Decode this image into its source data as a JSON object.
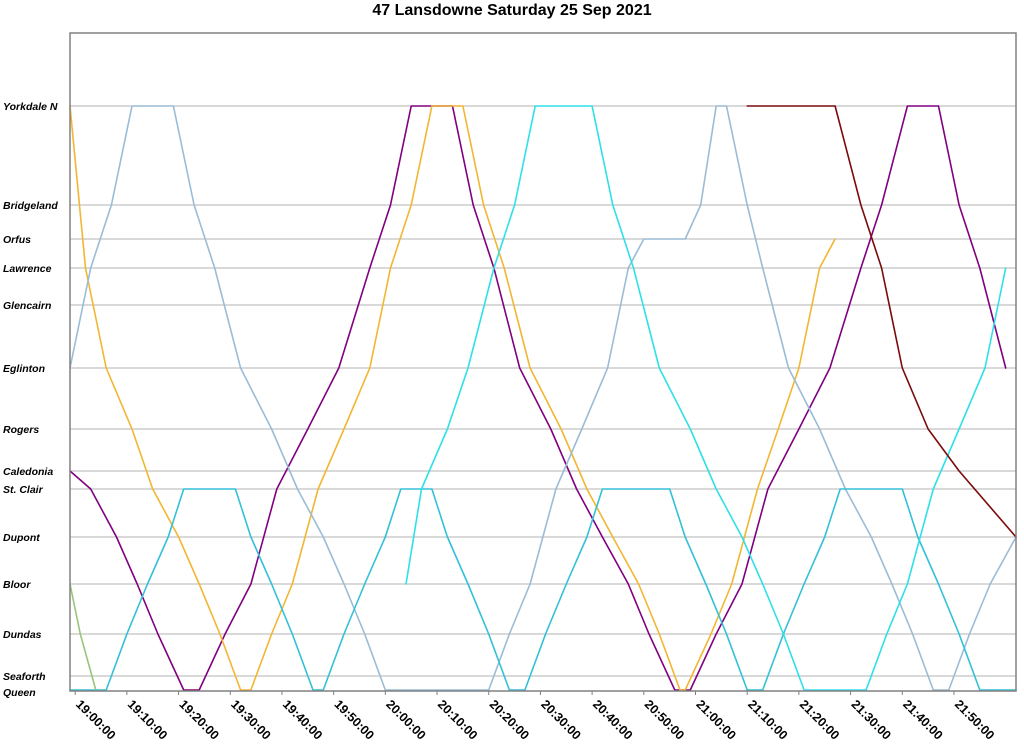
{
  "chart_data": {
    "type": "line",
    "title": "47 Lansdowne Saturday 25 Sep 2021",
    "xlabel": "",
    "ylabel": "",
    "xlim": [
      "18:59:00",
      "22:02:00"
    ],
    "x_ticks": [
      "19:00:00",
      "19:10:00",
      "19:20:00",
      "19:30:00",
      "19:40:00",
      "19:50:00",
      "20:00:00",
      "20:10:00",
      "20:20:00",
      "20:30:00",
      "20:40:00",
      "20:50:00",
      "21:00:00",
      "21:10:00",
      "21:20:00",
      "21:30:00",
      "21:40:00",
      "21:50:00"
    ],
    "stops": [
      "Yorkdale N",
      "Bridgeland",
      "Orfus",
      "Lawrence",
      "Glencairn",
      "Eglinton",
      "Rogers",
      "Caledonia",
      "St. Clair",
      "Dupont",
      "Bloor",
      "Dundas",
      "Seaforth",
      "Queen"
    ],
    "grid": true,
    "legend": "none",
    "series": [
      {
        "color": "#800080",
        "points": [
          [
            "18:59",
            "Caledonia"
          ],
          [
            "19:03",
            "St. Clair"
          ],
          [
            "19:08",
            "Dupont"
          ],
          [
            "19:12",
            "Bloor"
          ],
          [
            "19:16",
            "Dundas"
          ],
          [
            "19:21",
            "Queen"
          ],
          [
            "19:24",
            "Queen"
          ],
          [
            "19:29",
            "Dundas"
          ],
          [
            "19:34",
            "Bloor"
          ],
          [
            "19:39",
            "St. Clair"
          ],
          [
            "19:45",
            "Rogers"
          ],
          [
            "19:51",
            "Eglinton"
          ],
          [
            "19:57",
            "Lawrence"
          ],
          [
            "20:01",
            "Bridgeland"
          ],
          [
            "20:05",
            "Yorkdale N"
          ],
          [
            "20:13",
            "Yorkdale N"
          ],
          [
            "20:17",
            "Bridgeland"
          ],
          [
            "20:21",
            "Lawrence"
          ],
          [
            "20:26",
            "Eglinton"
          ],
          [
            "20:32",
            "Rogers"
          ],
          [
            "20:37",
            "St. Clair"
          ],
          [
            "20:42",
            "Dupont"
          ],
          [
            "20:47",
            "Bloor"
          ],
          [
            "20:51",
            "Dundas"
          ],
          [
            "20:56",
            "Queen"
          ],
          [
            "20:59",
            "Queen"
          ],
          [
            "21:04",
            "Dundas"
          ],
          [
            "21:09",
            "Bloor"
          ],
          [
            "21:14",
            "St. Clair"
          ],
          [
            "21:20",
            "Rogers"
          ],
          [
            "21:26",
            "Eglinton"
          ],
          [
            "21:32",
            "Lawrence"
          ],
          [
            "21:36",
            "Bridgeland"
          ],
          [
            "21:41",
            "Yorkdale N"
          ],
          [
            "21:47",
            "Yorkdale N"
          ],
          [
            "21:51",
            "Bridgeland"
          ],
          [
            "21:55",
            "Lawrence"
          ],
          [
            "22:00",
            "Eglinton"
          ]
        ]
      },
      {
        "color": "#F2B632",
        "points": [
          [
            "18:59",
            "Yorkdale N"
          ],
          [
            "19:02",
            "Lawrence"
          ],
          [
            "19:06",
            "Eglinton"
          ],
          [
            "19:11",
            "Rogers"
          ],
          [
            "19:15",
            "St. Clair"
          ],
          [
            "19:20",
            "Dupont"
          ],
          [
            "19:24",
            "Bloor"
          ],
          [
            "19:28",
            "Dundas"
          ],
          [
            "19:32",
            "Queen"
          ],
          [
            "19:34",
            "Queen"
          ],
          [
            "19:38",
            "Dundas"
          ],
          [
            "19:42",
            "Bloor"
          ],
          [
            "19:47",
            "St. Clair"
          ],
          [
            "19:52",
            "Rogers"
          ],
          [
            "19:57",
            "Eglinton"
          ],
          [
            "20:01",
            "Lawrence"
          ],
          [
            "20:05",
            "Bridgeland"
          ],
          [
            "20:09",
            "Yorkdale N"
          ],
          [
            "20:15",
            "Yorkdale N"
          ],
          [
            "20:19",
            "Bridgeland"
          ],
          [
            "20:23",
            "Lawrence"
          ],
          [
            "20:28",
            "Eglinton"
          ],
          [
            "20:34",
            "Rogers"
          ],
          [
            "20:39",
            "St. Clair"
          ],
          [
            "20:44",
            "Dupont"
          ],
          [
            "20:49",
            "Bloor"
          ],
          [
            "20:53",
            "Dundas"
          ],
          [
            "20:57",
            "Queen"
          ],
          [
            "20:58",
            "Queen"
          ],
          [
            "21:03",
            "Dundas"
          ],
          [
            "21:07",
            "Bloor"
          ],
          [
            "21:12",
            "St. Clair"
          ],
          [
            "21:16",
            "Rogers"
          ],
          [
            "21:20",
            "Eglinton"
          ],
          [
            "21:24",
            "Lawrence"
          ],
          [
            "21:27",
            "Orfus"
          ]
        ]
      },
      {
        "color": "#9BBCD6",
        "points": [
          [
            "18:59",
            "Eglinton"
          ],
          [
            "19:03",
            "Lawrence"
          ],
          [
            "19:07",
            "Bridgeland"
          ],
          [
            "19:11",
            "Yorkdale N"
          ],
          [
            "19:19",
            "Yorkdale N"
          ],
          [
            "19:23",
            "Bridgeland"
          ],
          [
            "19:27",
            "Lawrence"
          ],
          [
            "19:32",
            "Eglinton"
          ],
          [
            "19:38",
            "Rogers"
          ],
          [
            "19:43",
            "St. Clair"
          ],
          [
            "19:48",
            "Dupont"
          ],
          [
            "19:52",
            "Bloor"
          ],
          [
            "19:56",
            "Dundas"
          ],
          [
            "20:00",
            "Queen"
          ],
          [
            "20:20",
            "Queen"
          ],
          [
            "20:24",
            "Dundas"
          ],
          [
            "20:28",
            "Bloor"
          ],
          [
            "20:33",
            "St. Clair"
          ],
          [
            "20:38",
            "Rogers"
          ],
          [
            "20:43",
            "Eglinton"
          ],
          [
            "20:47",
            "Lawrence"
          ],
          [
            "20:50",
            "Orfus"
          ],
          [
            "20:58",
            "Orfus"
          ],
          [
            "21:01",
            "Bridgeland"
          ],
          [
            "21:04",
            "Yorkdale N"
          ],
          [
            "21:06",
            "Yorkdale N"
          ],
          [
            "21:10",
            "Bridgeland"
          ],
          [
            "21:13",
            "Lawrence"
          ],
          [
            "21:18",
            "Eglinton"
          ],
          [
            "21:24",
            "Rogers"
          ],
          [
            "21:29",
            "St. Clair"
          ],
          [
            "21:34",
            "Dupont"
          ],
          [
            "21:38",
            "Bloor"
          ],
          [
            "21:42",
            "Dundas"
          ],
          [
            "21:46",
            "Queen"
          ],
          [
            "21:49",
            "Queen"
          ],
          [
            "21:53",
            "Dundas"
          ],
          [
            "21:57",
            "Bloor"
          ],
          [
            "22:02",
            "Dupont"
          ]
        ]
      },
      {
        "color": "#33C0D8",
        "points": [
          [
            "18:59",
            "Queen"
          ],
          [
            "19:06",
            "Queen"
          ],
          [
            "19:10",
            "Dundas"
          ],
          [
            "19:14",
            "Bloor"
          ],
          [
            "19:18",
            "Dupont"
          ],
          [
            "19:21",
            "St. Clair"
          ],
          [
            "19:31",
            "St. Clair"
          ],
          [
            "19:34",
            "Dupont"
          ],
          [
            "19:38",
            "Bloor"
          ],
          [
            "19:42",
            "Dundas"
          ],
          [
            "19:46",
            "Queen"
          ],
          [
            "19:48",
            "Queen"
          ],
          [
            "19:52",
            "Dundas"
          ],
          [
            "19:56",
            "Bloor"
          ],
          [
            "20:00",
            "Dupont"
          ],
          [
            "20:03",
            "St. Clair"
          ],
          [
            "20:09",
            "St. Clair"
          ],
          [
            "20:12",
            "Dupont"
          ],
          [
            "20:16",
            "Bloor"
          ],
          [
            "20:20",
            "Dundas"
          ],
          [
            "20:24",
            "Queen"
          ],
          [
            "20:27",
            "Queen"
          ],
          [
            "20:31",
            "Dundas"
          ],
          [
            "20:35",
            "Bloor"
          ],
          [
            "20:39",
            "Dupont"
          ],
          [
            "20:42",
            "St. Clair"
          ],
          [
            "20:55",
            "St. Clair"
          ],
          [
            "20:58",
            "Dupont"
          ],
          [
            "21:02",
            "Bloor"
          ],
          [
            "21:06",
            "Dundas"
          ],
          [
            "21:10",
            "Queen"
          ],
          [
            "21:13",
            "Queen"
          ],
          [
            "21:17",
            "Dundas"
          ],
          [
            "21:21",
            "Bloor"
          ],
          [
            "21:25",
            "Dupont"
          ],
          [
            "21:28",
            "St. Clair"
          ],
          [
            "21:40",
            "St. Clair"
          ],
          [
            "21:43",
            "Dupont"
          ],
          [
            "21:47",
            "Bloor"
          ],
          [
            "21:51",
            "Dundas"
          ],
          [
            "21:55",
            "Queen"
          ],
          [
            "22:02",
            "Queen"
          ]
        ]
      },
      {
        "color": "#2EE0E8",
        "points": [
          [
            "20:04",
            "Bloor"
          ],
          [
            "20:07",
            "St. Clair"
          ],
          [
            "20:12",
            "Rogers"
          ],
          [
            "20:16",
            "Eglinton"
          ],
          [
            "20:21",
            "Lawrence"
          ],
          [
            "20:25",
            "Bridgeland"
          ],
          [
            "20:29",
            "Yorkdale N"
          ],
          [
            "20:40",
            "Yorkdale N"
          ],
          [
            "20:44",
            "Bridgeland"
          ],
          [
            "20:48",
            "Lawrence"
          ],
          [
            "20:53",
            "Eglinton"
          ],
          [
            "20:59",
            "Rogers"
          ],
          [
            "21:04",
            "St. Clair"
          ],
          [
            "21:09",
            "Dupont"
          ],
          [
            "21:13",
            "Bloor"
          ],
          [
            "21:17",
            "Dundas"
          ],
          [
            "21:21",
            "Queen"
          ],
          [
            "21:33",
            "Queen"
          ],
          [
            "21:37",
            "Dundas"
          ],
          [
            "21:41",
            "Bloor"
          ],
          [
            "21:46",
            "St. Clair"
          ],
          [
            "21:51",
            "Rogers"
          ],
          [
            "21:56",
            "Eglinton"
          ],
          [
            "22:00",
            "Lawrence"
          ]
        ]
      },
      {
        "color": "#9AC47A",
        "points": [
          [
            "18:59",
            "Bloor"
          ],
          [
            "19:01",
            "Dundas"
          ],
          [
            "19:04",
            "Queen"
          ]
        ]
      },
      {
        "color": "#7B0A0A",
        "points": [
          [
            "21:10",
            "Yorkdale N"
          ],
          [
            "21:27",
            "Yorkdale N"
          ],
          [
            "21:32",
            "Bridgeland"
          ],
          [
            "21:36",
            "Lawrence"
          ],
          [
            "21:40",
            "Eglinton"
          ],
          [
            "21:45",
            "Rogers"
          ],
          [
            "21:51",
            "Caledonia"
          ],
          [
            "22:02",
            "Dupont"
          ]
        ]
      }
    ]
  }
}
